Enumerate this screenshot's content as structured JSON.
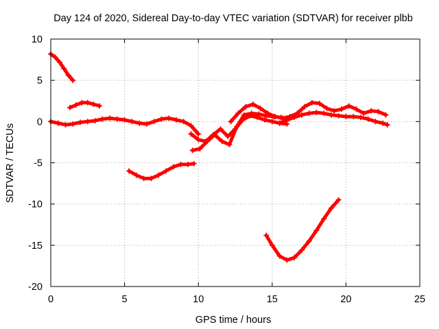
{
  "chart_data": {
    "type": "scatter",
    "title": "Day 124 of 2020, Sidereal Day-to-day VTEC variation (SDTVAR) for receiver plbb",
    "xlabel": "GPS time / hours",
    "ylabel": "SDTVAR / TECUs",
    "xlim": [
      0,
      25
    ],
    "ylim": [
      -20,
      10
    ],
    "xticks": [
      0,
      5,
      10,
      15,
      20,
      25
    ],
    "yticks": [
      -20,
      -15,
      -10,
      -5,
      0,
      5,
      10
    ],
    "grid": true,
    "legend": "none",
    "marker": "plus",
    "series": [
      {
        "name": "track-1",
        "color": "#ff0000",
        "x": [
          0.0,
          0.3,
          0.6,
          0.9,
          1.2,
          1.5
        ],
        "y": [
          8.2,
          7.8,
          7.2,
          6.4,
          5.6,
          5.0
        ]
      },
      {
        "name": "track-2",
        "color": "#ff0000",
        "x": [
          1.3,
          1.7,
          2.1,
          2.5,
          2.9,
          3.3
        ],
        "y": [
          1.7,
          2.0,
          2.3,
          2.3,
          2.1,
          1.9
        ]
      },
      {
        "name": "track-3",
        "color": "#ff0000",
        "x": [
          0.0,
          0.5,
          1.0,
          1.5,
          2.0,
          2.5,
          3.0,
          3.5,
          4.0,
          4.5,
          5.0,
          5.5,
          6.0,
          6.5,
          7.0,
          7.5,
          8.0,
          8.5,
          9.0,
          9.5,
          10.0
        ],
        "y": [
          0.0,
          -0.2,
          -0.4,
          -0.3,
          -0.1,
          0.0,
          0.1,
          0.3,
          0.4,
          0.3,
          0.2,
          0.0,
          -0.2,
          -0.3,
          0.0,
          0.3,
          0.4,
          0.2,
          0.0,
          -0.5,
          -1.5
        ]
      },
      {
        "name": "track-4",
        "color": "#ff0000",
        "x": [
          5.3,
          5.8,
          6.3,
          6.8,
          7.3,
          7.8,
          8.3,
          8.8,
          9.3,
          9.7
        ],
        "y": [
          -6.0,
          -6.5,
          -6.9,
          -6.9,
          -6.5,
          -6.0,
          -5.5,
          -5.2,
          -5.2,
          -5.1
        ]
      },
      {
        "name": "track-5",
        "color": "#ff0000",
        "x": [
          9.5,
          10.0,
          10.5,
          11.0,
          11.5,
          12.0,
          12.5,
          13.0,
          13.5,
          14.0,
          14.5,
          15.0,
          15.5,
          16.0
        ],
        "y": [
          -1.5,
          -2.2,
          -2.4,
          -1.6,
          -0.9,
          -1.8,
          -0.9,
          0.2,
          0.7,
          0.5,
          0.2,
          0.0,
          -0.2,
          -0.3
        ]
      },
      {
        "name": "track-6",
        "color": "#ff0000",
        "x": [
          9.6,
          10.1,
          10.6,
          11.1,
          11.6,
          12.1,
          12.6,
          13.1,
          13.6,
          14.1,
          14.6,
          15.1,
          15.6,
          16.1
        ],
        "y": [
          -3.5,
          -3.3,
          -2.4,
          -1.6,
          -2.4,
          -2.8,
          -0.6,
          0.8,
          1.0,
          0.9,
          0.7,
          0.6,
          0.5,
          0.3
        ]
      },
      {
        "name": "track-7",
        "color": "#ff0000",
        "x": [
          12.2,
          12.7,
          13.2,
          13.7,
          14.2,
          14.7,
          15.2,
          15.7,
          16.2,
          16.7,
          17.2,
          17.7,
          18.2,
          18.7,
          19.2,
          19.7,
          20.2,
          20.7,
          21.2,
          21.7,
          22.2,
          22.7
        ],
        "y": [
          0.0,
          1.0,
          1.8,
          2.1,
          1.6,
          1.0,
          0.6,
          0.4,
          0.6,
          1.0,
          1.8,
          2.3,
          2.2,
          1.6,
          1.3,
          1.5,
          1.9,
          1.5,
          1.0,
          1.3,
          1.2,
          0.8
        ]
      },
      {
        "name": "track-8",
        "color": "#ff0000",
        "x": [
          15.5,
          16.0,
          16.5,
          17.0,
          17.5,
          18.0,
          18.5,
          19.0,
          19.5,
          20.0,
          20.5,
          21.0,
          21.5,
          22.0,
          22.5,
          22.8
        ],
        "y": [
          -0.2,
          0.2,
          0.5,
          0.8,
          1.0,
          1.1,
          1.0,
          0.8,
          0.7,
          0.6,
          0.6,
          0.5,
          0.3,
          0.0,
          -0.2,
          -0.4
        ]
      },
      {
        "name": "track-9",
        "color": "#ff0000",
        "x": [
          14.6,
          15.0,
          15.5,
          16.0,
          16.5,
          17.0,
          17.5,
          18.0,
          18.5,
          19.0,
          19.5
        ],
        "y": [
          -13.8,
          -15.0,
          -16.3,
          -16.8,
          -16.5,
          -15.6,
          -14.5,
          -13.2,
          -11.8,
          -10.5,
          -9.5
        ]
      }
    ]
  }
}
